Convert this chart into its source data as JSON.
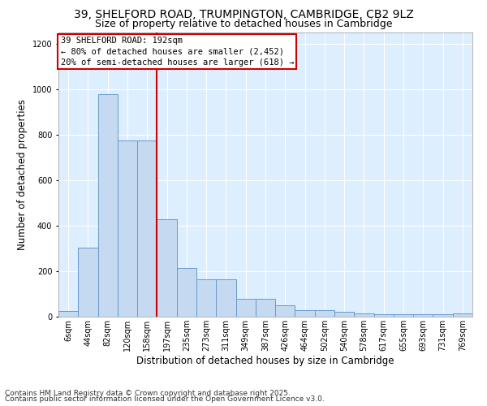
{
  "title_line1": "39, SHELFORD ROAD, TRUMPINGTON, CAMBRIDGE, CB2 9LZ",
  "title_line2": "Size of property relative to detached houses in Cambridge",
  "xlabel": "Distribution of detached houses by size in Cambridge",
  "ylabel": "Number of detached properties",
  "categories": [
    "6sqm",
    "44sqm",
    "82sqm",
    "120sqm",
    "158sqm",
    "197sqm",
    "235sqm",
    "273sqm",
    "311sqm",
    "349sqm",
    "387sqm",
    "426sqm",
    "464sqm",
    "502sqm",
    "540sqm",
    "578sqm",
    "617sqm",
    "655sqm",
    "693sqm",
    "731sqm",
    "769sqm"
  ],
  "values": [
    25,
    305,
    980,
    775,
    775,
    430,
    215,
    165,
    165,
    80,
    80,
    50,
    30,
    30,
    20,
    15,
    10,
    10,
    10,
    10,
    15
  ],
  "bar_color": "#c5d9f0",
  "bar_edge_color": "#6699cc",
  "annotation_box_text": "39 SHELFORD ROAD: 192sqm\n← 80% of detached houses are smaller (2,452)\n20% of semi-detached houses are larger (618) →",
  "vline_color": "#cc0000",
  "vline_x_index": 4.5,
  "ylim": [
    0,
    1250
  ],
  "yticks": [
    0,
    200,
    400,
    600,
    800,
    1000,
    1200
  ],
  "plot_bg_color": "#ddeeff",
  "footer_line1": "Contains HM Land Registry data © Crown copyright and database right 2025.",
  "footer_line2": "Contains public sector information licensed under the Open Government Licence v3.0.",
  "title_fontsize": 10,
  "subtitle_fontsize": 9,
  "axis_label_fontsize": 8.5,
  "tick_fontsize": 7,
  "footer_fontsize": 6.5,
  "annot_fontsize": 7.5
}
